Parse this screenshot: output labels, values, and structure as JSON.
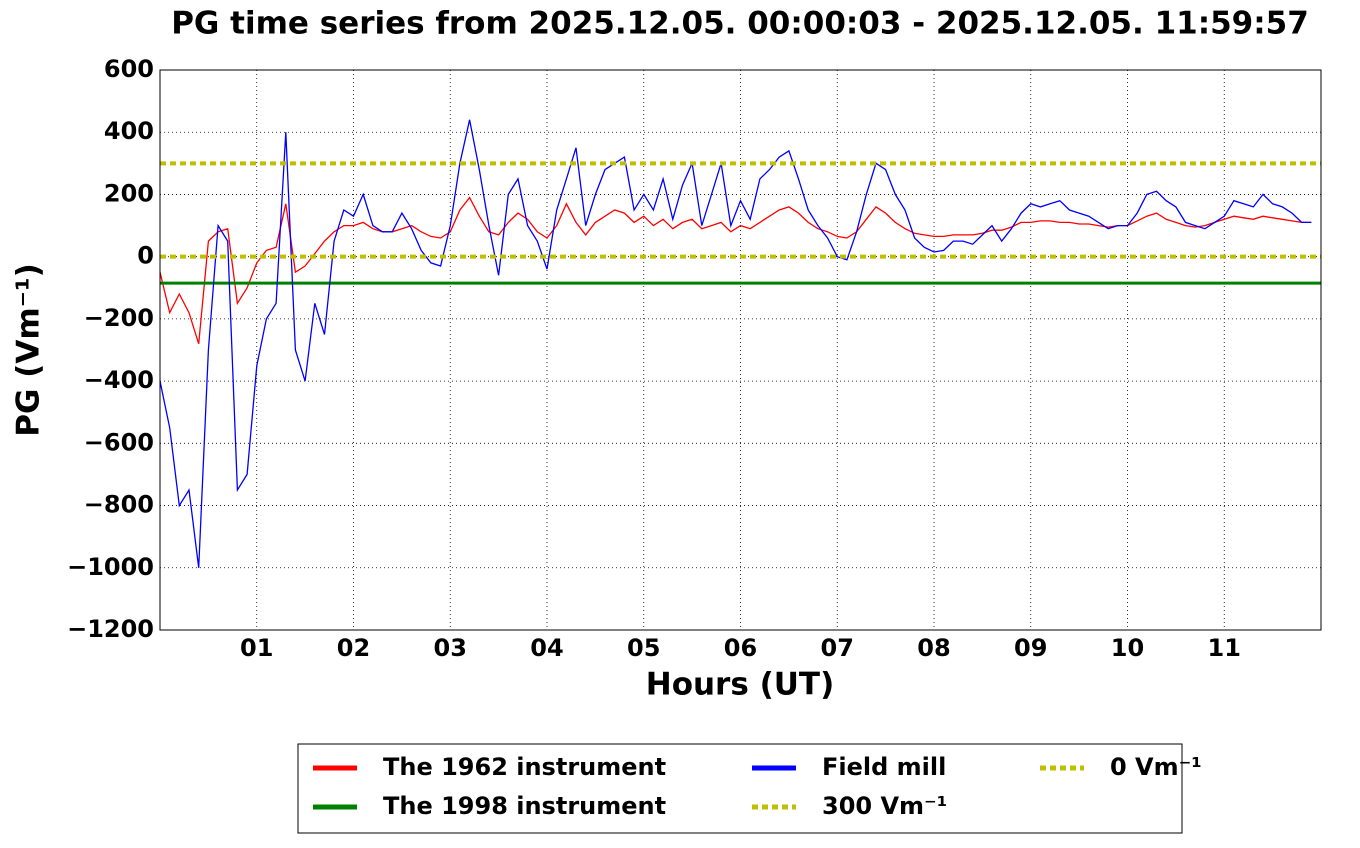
{
  "chart_data": {
    "type": "line",
    "title": "PG time series from 2025.12.05. 00:00:03 - 2025.12.05. 11:59:57",
    "x_label": "Hours (UT)",
    "y_label": "PG (Vm⁻¹)",
    "xlim": [
      0,
      12
    ],
    "ylim": [
      -1200,
      600
    ],
    "xticks": [
      {
        "value": 1,
        "label": "01"
      },
      {
        "value": 2,
        "label": "02"
      },
      {
        "value": 3,
        "label": "03"
      },
      {
        "value": 4,
        "label": "04"
      },
      {
        "value": 5,
        "label": "05"
      },
      {
        "value": 6,
        "label": "06"
      },
      {
        "value": 7,
        "label": "07"
      },
      {
        "value": 8,
        "label": "08"
      },
      {
        "value": 9,
        "label": "09"
      },
      {
        "value": 10,
        "label": "10"
      },
      {
        "value": 11,
        "label": "11"
      }
    ],
    "yticks": [
      {
        "value": -1200,
        "label": "−1200"
      },
      {
        "value": -1000,
        "label": "−1000"
      },
      {
        "value": -800,
        "label": "−800"
      },
      {
        "value": -600,
        "label": "−600"
      },
      {
        "value": -400,
        "label": "−400"
      },
      {
        "value": -200,
        "label": "−200"
      },
      0,
      200,
      400,
      600
    ],
    "grid": true,
    "x": [
      0,
      0.1,
      0.2,
      0.3,
      0.4,
      0.5,
      0.6,
      0.7,
      0.8,
      0.9,
      1,
      1.1,
      1.2,
      1.3,
      1.4,
      1.5,
      1.6,
      1.7,
      1.8,
      1.9,
      2,
      2.1,
      2.2,
      2.3,
      2.4,
      2.5,
      2.6,
      2.7,
      2.8,
      2.9,
      3,
      3.1,
      3.2,
      3.3,
      3.4,
      3.5,
      3.6,
      3.7,
      3.8,
      3.9,
      4,
      4.1,
      4.2,
      4.3,
      4.4,
      4.5,
      4.6,
      4.7,
      4.8,
      4.9,
      5,
      5.1,
      5.2,
      5.3,
      5.4,
      5.5,
      5.6,
      5.7,
      5.8,
      5.9,
      6,
      6.1,
      6.2,
      6.3,
      6.4,
      6.5,
      6.6,
      6.7,
      6.8,
      6.9,
      7,
      7.1,
      7.2,
      7.3,
      7.4,
      7.5,
      7.6,
      7.7,
      7.8,
      7.9,
      8,
      8.1,
      8.2,
      8.3,
      8.4,
      8.5,
      8.6,
      8.7,
      8.8,
      8.9,
      9,
      9.1,
      9.2,
      9.3,
      9.4,
      9.5,
      9.6,
      9.7,
      9.8,
      9.9,
      10,
      10.1,
      10.2,
      10.3,
      10.4,
      10.5,
      10.6,
      10.7,
      10.8,
      10.9,
      11,
      11.1,
      11.2,
      11.3,
      11.4,
      11.5,
      11.6,
      11.7,
      11.8,
      11.9
    ],
    "series": [
      {
        "name": "The 1962 instrument",
        "color": "#ff0000",
        "values": [
          -50,
          -180,
          -120,
          -180,
          -280,
          50,
          80,
          90,
          -150,
          -100,
          -20,
          20,
          30,
          170,
          -50,
          -30,
          10,
          50,
          80,
          100,
          100,
          110,
          90,
          80,
          80,
          90,
          100,
          80,
          65,
          60,
          80,
          150,
          190,
          130,
          80,
          70,
          110,
          140,
          120,
          80,
          60,
          100,
          170,
          110,
          70,
          110,
          130,
          150,
          140,
          110,
          130,
          100,
          120,
          90,
          110,
          120,
          90,
          100,
          110,
          80,
          100,
          90,
          110,
          130,
          150,
          160,
          140,
          110,
          90,
          80,
          65,
          60,
          80,
          120,
          160,
          140,
          110,
          90,
          75,
          70,
          65,
          65,
          70,
          70,
          70,
          75,
          85,
          85,
          95,
          110,
          110,
          115,
          115,
          110,
          110,
          105,
          105,
          100,
          95,
          100,
          100,
          115,
          130,
          140,
          120,
          110,
          100,
          95,
          100,
          110,
          120,
          130,
          125,
          120,
          130,
          125,
          120,
          115,
          110,
          110
        ]
      },
      {
        "name": "The 1998 instrument",
        "color": "#008000",
        "level": -85
      },
      {
        "name": "Field mill",
        "color": "#0000ff",
        "values": [
          -400,
          -550,
          -800,
          -750,
          -1000,
          -300,
          100,
          50,
          -750,
          -700,
          -350,
          -200,
          -150,
          400,
          -300,
          -400,
          -150,
          -250,
          50,
          150,
          130,
          200,
          100,
          80,
          80,
          140,
          90,
          20,
          -20,
          -30,
          100,
          300,
          440,
          280,
          100,
          -60,
          200,
          250,
          100,
          50,
          -40,
          150,
          250,
          350,
          100,
          200,
          280,
          300,
          320,
          150,
          200,
          150,
          250,
          120,
          230,
          300,
          100,
          200,
          300,
          100,
          180,
          120,
          250,
          280,
          320,
          340,
          250,
          150,
          100,
          60,
          0,
          -10,
          80,
          200,
          300,
          280,
          200,
          150,
          60,
          30,
          15,
          20,
          50,
          50,
          40,
          70,
          100,
          50,
          90,
          140,
          170,
          160,
          170,
          180,
          150,
          140,
          130,
          110,
          90,
          100,
          100,
          140,
          200,
          210,
          180,
          160,
          110,
          100,
          90,
          110,
          130,
          180,
          170,
          160,
          200,
          170,
          160,
          140,
          110,
          110
        ]
      },
      {
        "name": "300 Vm⁻¹",
        "color": "#bfbf00",
        "level": 300,
        "dashed": true
      },
      {
        "name": "0 Vm⁻¹",
        "color": "#bfbf00",
        "level": 0,
        "dashed": true
      }
    ]
  }
}
